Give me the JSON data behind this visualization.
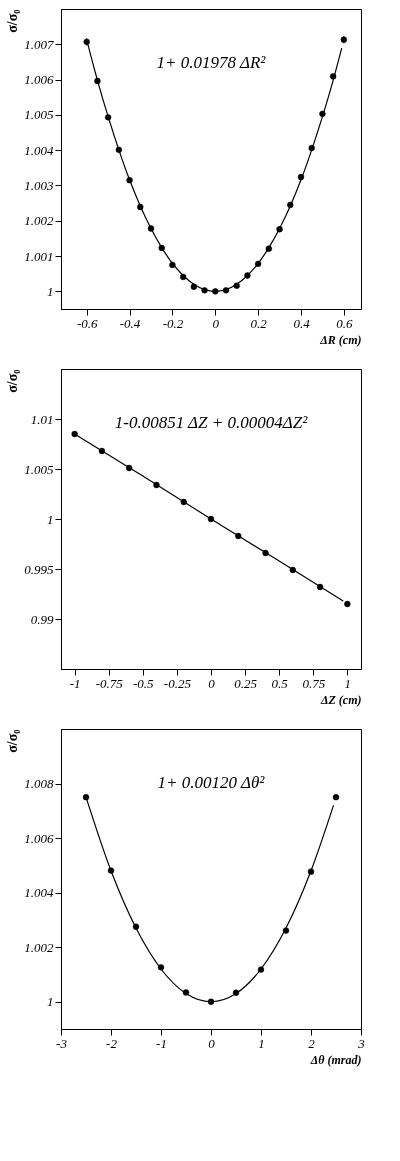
{
  "chart_data": [
    {
      "type": "scatter",
      "xlabel": "ΔR (cm)",
      "ylabel": "σ/σ₀",
      "annotations": [
        "1+ 0.01978 ΔR²"
      ],
      "xlim": [
        -0.72,
        0.68
      ],
      "ylim": [
        0.9995,
        1.008
      ],
      "xticks": [
        -0.6,
        -0.4,
        -0.2,
        0,
        0.2,
        0.4,
        0.6
      ],
      "yticks": [
        1,
        1.001,
        1.002,
        1.003,
        1.004,
        1.005,
        1.006,
        1.007
      ],
      "grid": false,
      "marker": "circle",
      "series": [
        {
          "type": "line",
          "color": "#000000",
          "marker": "none",
          "x": [
            -0.6,
            -0.55,
            -0.5,
            -0.45,
            -0.4,
            -0.35,
            -0.3,
            -0.25,
            -0.2,
            -0.15,
            -0.1,
            -0.05,
            0,
            0.05,
            0.1,
            0.15,
            0.2,
            0.25,
            0.3,
            0.35,
            0.4,
            0.45,
            0.5,
            0.55,
            0.59
          ],
          "values": [
            1.00712,
            1.00598,
            1.00495,
            1.00401,
            1.00316,
            1.00242,
            1.00178,
            1.00124,
            1.00079,
            1.00045,
            1.0002,
            1.00005,
            1.0,
            1.00005,
            1.0002,
            1.00045,
            1.00079,
            1.00124,
            1.00178,
            1.00242,
            1.00316,
            1.00401,
            1.00495,
            1.00598,
            1.00689
          ]
        },
        {
          "type": "scatter",
          "color": "#000000",
          "x": [
            -0.6,
            -0.55,
            -0.5,
            -0.45,
            -0.4,
            -0.35,
            -0.3,
            -0.25,
            -0.2,
            -0.15,
            -0.1,
            -0.05,
            0,
            0.05,
            0.1,
            0.15,
            0.2,
            0.25,
            0.3,
            0.35,
            0.4,
            0.45,
            0.5,
            0.55,
            0.6
          ],
          "values": [
            1.00707,
            1.00596,
            1.00493,
            1.00401,
            1.00315,
            1.00239,
            1.00178,
            1.00123,
            1.00075,
            1.00041,
            1.00013,
            1.00003,
            1.0,
            1.00003,
            1.00016,
            1.00045,
            1.00078,
            1.00121,
            1.00176,
            1.00245,
            1.00324,
            1.00406,
            1.00503,
            1.00609,
            1.00713
          ],
          "errors": [
            0.0001,
            7e-05,
            6e-05,
            6e-05,
            5e-05,
            5e-05,
            4e-05,
            4e-05,
            3e-05,
            3e-05,
            null,
            null,
            null,
            null,
            null,
            3e-05,
            3e-05,
            4e-05,
            4e-05,
            5e-05,
            5e-05,
            6e-05,
            6e-05,
            7e-05,
            0.0001
          ]
        }
      ]
    },
    {
      "type": "scatter",
      "xlabel": "ΔZ (cm)",
      "ylabel": "σ/σ₀",
      "annotations": [
        "1-0.00851 ΔZ + 0.00004ΔZ²"
      ],
      "xlim": [
        -1.1,
        1.1
      ],
      "ylim": [
        0.985,
        1.015
      ],
      "xticks": [
        -1,
        -0.75,
        -0.5,
        -0.25,
        0,
        0.25,
        0.5,
        0.75,
        1
      ],
      "yticks": [
        0.99,
        0.995,
        1,
        1.005,
        1.01
      ],
      "grid": false,
      "marker": "circle",
      "series": [
        {
          "type": "line",
          "color": "#000000",
          "marker": "none",
          "x": [
            -1,
            -0.5,
            0,
            0.5,
            0.97
          ],
          "values": [
            1.0085,
            1.0043,
            1.0,
            0.9958,
            0.9918
          ]
        },
        {
          "type": "scatter",
          "color": "#000000",
          "x": [
            -1,
            -0.8,
            -0.6,
            -0.4,
            -0.2,
            0,
            0.2,
            0.4,
            0.6,
            0.8,
            1
          ],
          "values": [
            1.0085,
            1.0068,
            1.0051,
            1.0034,
            1.0017,
            1.0,
            0.9983,
            0.9966,
            0.9949,
            0.9932,
            0.9915
          ]
        }
      ]
    },
    {
      "type": "scatter",
      "xlabel": "Δθ (mrad)",
      "ylabel": "σ/σ₀",
      "annotations": [
        "1+ 0.00120 Δθ²"
      ],
      "xlim": [
        -3,
        3
      ],
      "ylim": [
        0.999,
        1.01
      ],
      "xticks": [
        -3,
        -2,
        -1,
        0,
        1,
        2,
        3
      ],
      "yticks": [
        1,
        1.002,
        1.004,
        1.006,
        1.008
      ],
      "grid": false,
      "marker": "circle",
      "series": [
        {
          "type": "line",
          "color": "#000000",
          "marker": "none",
          "x": [
            -2.5,
            -2,
            -1.5,
            -1,
            -0.5,
            0,
            0.5,
            1,
            1.5,
            2,
            2.45
          ],
          "values": [
            1.0075,
            1.0048,
            1.0027,
            1.0012,
            1.0003,
            1.0,
            1.0003,
            1.0012,
            1.0027,
            1.0048,
            1.0072
          ]
        },
        {
          "type": "scatter",
          "color": "#000000",
          "x": [
            -2.5,
            -2,
            -1.5,
            -1,
            -0.5,
            0,
            0.5,
            1,
            1.5,
            2,
            2.5
          ],
          "values": [
            1.0075,
            1.00481,
            1.00275,
            1.00126,
            1.00034,
            1.0,
            1.00033,
            1.00118,
            1.00261,
            1.00477,
            1.0075
          ]
        }
      ]
    }
  ]
}
